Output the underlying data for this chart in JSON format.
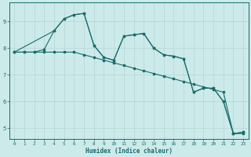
{
  "xlabel": "Humidex (Indice chaleur)",
  "background_color": "#cceaea",
  "line_color": "#1a6b6b",
  "grid_color": "#b8d8d8",
  "xlim": [
    -0.5,
    23.5
  ],
  "ylim": [
    4.6,
    9.7
  ],
  "yticks": [
    5,
    6,
    7,
    8,
    9
  ],
  "xticks": [
    0,
    1,
    2,
    3,
    4,
    5,
    6,
    7,
    8,
    9,
    10,
    11,
    12,
    13,
    14,
    15,
    16,
    17,
    18,
    19,
    20,
    21,
    22,
    23
  ],
  "line1_x": [
    0,
    1,
    2,
    3,
    4,
    5,
    6,
    7,
    8,
    9,
    10,
    11,
    12,
    13,
    14,
    15,
    16,
    17,
    18,
    19,
    20,
    21,
    22,
    23
  ],
  "line1_y": [
    7.85,
    7.85,
    7.85,
    7.85,
    7.85,
    7.85,
    7.85,
    7.75,
    7.65,
    7.55,
    7.45,
    7.35,
    7.25,
    7.15,
    7.05,
    6.95,
    6.85,
    6.75,
    6.65,
    6.55,
    6.45,
    6.35,
    4.8,
    4.8
  ],
  "line2_x": [
    0,
    4,
    5,
    6,
    7,
    8,
    9,
    10,
    11,
    12,
    13,
    14,
    15,
    16,
    17,
    18,
    19,
    20,
    21,
    22,
    23
  ],
  "line2_y": [
    7.85,
    8.65,
    9.1,
    9.25,
    9.3,
    8.1,
    7.65,
    7.55,
    8.45,
    8.5,
    8.55,
    8.0,
    7.75,
    7.7,
    7.6,
    6.35,
    6.5,
    6.5,
    6.0,
    4.8,
    4.85
  ],
  "line3_x": [
    0,
    1,
    2,
    3,
    4,
    5,
    6,
    7,
    8,
    9,
    10,
    11,
    12,
    13,
    14,
    15,
    16,
    17,
    18,
    19,
    20,
    21,
    22,
    23
  ],
  "line3_y": [
    7.85,
    7.85,
    7.85,
    7.95,
    8.65,
    9.1,
    9.25,
    9.3,
    8.1,
    7.65,
    7.55,
    8.45,
    8.5,
    8.55,
    8.0,
    7.75,
    7.7,
    7.6,
    6.35,
    6.5,
    6.5,
    6.0,
    4.8,
    4.85
  ]
}
